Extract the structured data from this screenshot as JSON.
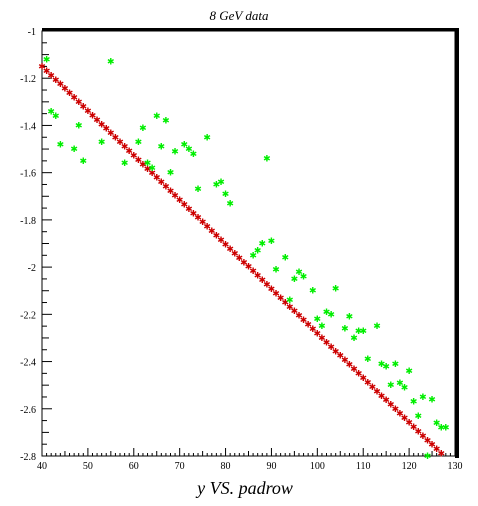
{
  "chart_data": {
    "type": "scatter",
    "title": "8 GeV data",
    "xlabel": "y VS. padrow",
    "ylabel": "",
    "xlim": [
      40,
      130
    ],
    "ylim": [
      -2.8,
      -1.0
    ],
    "xticks": [
      "40",
      "50",
      "60",
      "70",
      "80",
      "90",
      "100",
      "110",
      "120",
      "130"
    ],
    "yticks": [
      "-1",
      "-1.2",
      "-1.4",
      "-1.6",
      "-1.8",
      "-2",
      "-2.2",
      "-2.4",
      "-2.6",
      "-2.8"
    ],
    "grid": false,
    "colors": {
      "data": "#00ee00",
      "fit": "#cc0000",
      "frame": "#000000"
    },
    "marker": "star",
    "series": [
      {
        "color": "#00ee00",
        "x": [
          41,
          42,
          43,
          44,
          47,
          48,
          49,
          53,
          55,
          58,
          61,
          62,
          63,
          64,
          65,
          66,
          67,
          68,
          69,
          71,
          72,
          73,
          74,
          76,
          78,
          79,
          80,
          81,
          86,
          87,
          88,
          89,
          90,
          91,
          93,
          94,
          95,
          96,
          97,
          99,
          100,
          101,
          102,
          103,
          104,
          106,
          107,
          108,
          109,
          110,
          111,
          113,
          114,
          115,
          116,
          117,
          118,
          119,
          120,
          121,
          122,
          123,
          124,
          125,
          126,
          127,
          128
        ],
        "y": [
          -1.12,
          -1.34,
          -1.36,
          -1.48,
          -1.5,
          -1.4,
          -1.55,
          -1.47,
          -1.13,
          -1.56,
          -1.47,
          -1.41,
          -1.56,
          -1.58,
          -1.36,
          -1.49,
          -1.38,
          -1.6,
          -1.51,
          -1.48,
          -1.5,
          -1.52,
          -1.67,
          -1.45,
          -1.65,
          -1.64,
          -1.69,
          -1.73,
          -1.95,
          -1.93,
          -1.9,
          -1.54,
          -1.89,
          -2.01,
          -1.96,
          -2.14,
          -2.05,
          -2.02,
          -2.04,
          -2.1,
          -2.22,
          -2.25,
          -2.19,
          -2.2,
          -2.09,
          -2.26,
          -2.21,
          -2.3,
          -2.27,
          -2.27,
          -2.39,
          -2.25,
          -2.41,
          -2.42,
          -2.5,
          -2.41,
          -2.49,
          -2.51,
          -2.44,
          -2.57,
          -2.63,
          -2.55,
          -2.8,
          -2.56,
          -2.66,
          -2.68,
          -2.68
        ]
      },
      {
        "color": "#cc0000",
        "x": [
          40,
          127
        ],
        "y": [
          -1.15,
          -2.79
        ]
      }
    ]
  }
}
